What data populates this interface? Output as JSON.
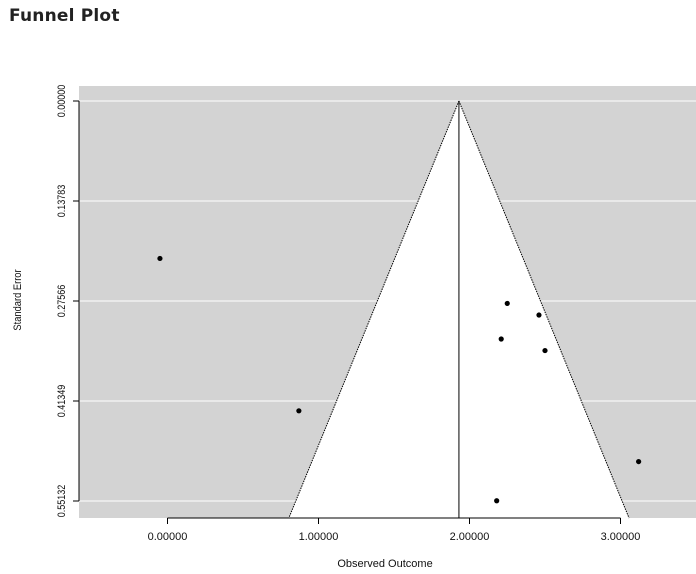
{
  "page": {
    "title": "Funnel Plot"
  },
  "chart_data": {
    "type": "scatter",
    "title": "Funnel Plot",
    "xlabel": "Observed Outcome",
    "ylabel": "Standard Error",
    "xlim": [
      -0.5,
      3.5
    ],
    "ylim": [
      0.55132,
      0.0
    ],
    "y_reversed": true,
    "x_ticks": [
      0.0,
      1.0,
      2.0,
      3.0
    ],
    "x_tick_labels": [
      "0.00000",
      "1.00000",
      "2.00000",
      "3.00000"
    ],
    "y_ticks": [
      0.0,
      0.13783,
      0.27566,
      0.41349,
      0.55132
    ],
    "y_tick_labels": [
      "0.00000",
      "0.13783",
      "0.27566",
      "0.41349",
      "0.55132"
    ],
    "pooled_estimate": 1.93,
    "funnel_multiplier": 1.96,
    "grid": true,
    "colors": {
      "background": "#d3d3d3",
      "funnel": "#ffffff",
      "points": "#000000",
      "grid": "#ffffff"
    },
    "points": [
      {
        "x": -0.05,
        "y": 0.217
      },
      {
        "x": 2.25,
        "y": 0.279
      },
      {
        "x": 2.46,
        "y": 0.295
      },
      {
        "x": 2.21,
        "y": 0.328
      },
      {
        "x": 2.5,
        "y": 0.344
      },
      {
        "x": 0.87,
        "y": 0.427
      },
      {
        "x": 3.12,
        "y": 0.497
      },
      {
        "x": 2.18,
        "y": 0.551
      }
    ]
  }
}
